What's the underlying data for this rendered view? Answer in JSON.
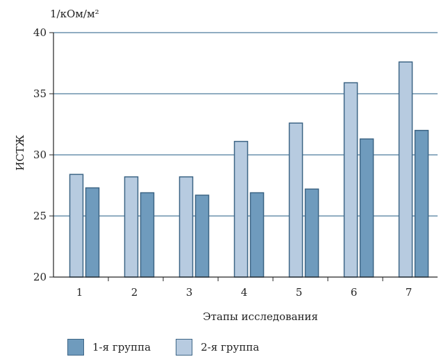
{
  "chart_data": {
    "type": "bar",
    "title": "",
    "xlabel": "Этапы исследования",
    "ylabel": "ИСТЖ",
    "unit_label": "1/кОм/м²",
    "ylim": [
      20,
      40
    ],
    "yticks": [
      20,
      25,
      30,
      35,
      40
    ],
    "grid": true,
    "legend_position": "bottom-left",
    "categories": [
      "1",
      "2",
      "3",
      "4",
      "5",
      "6",
      "7"
    ],
    "series": [
      {
        "name": "2-я группа",
        "color": "#b7cbe0",
        "values": [
          28.4,
          28.2,
          28.2,
          31.1,
          32.6,
          35.9,
          37.6
        ]
      },
      {
        "name": "1-я группа",
        "color": "#6f9bbd",
        "values": [
          27.3,
          26.9,
          26.7,
          26.9,
          27.2,
          31.3,
          32.0
        ]
      }
    ],
    "legend": [
      {
        "label": "1-я группа",
        "color": "#6f9bbd"
      },
      {
        "label": "2-я группа",
        "color": "#b7cbe0"
      }
    ]
  }
}
